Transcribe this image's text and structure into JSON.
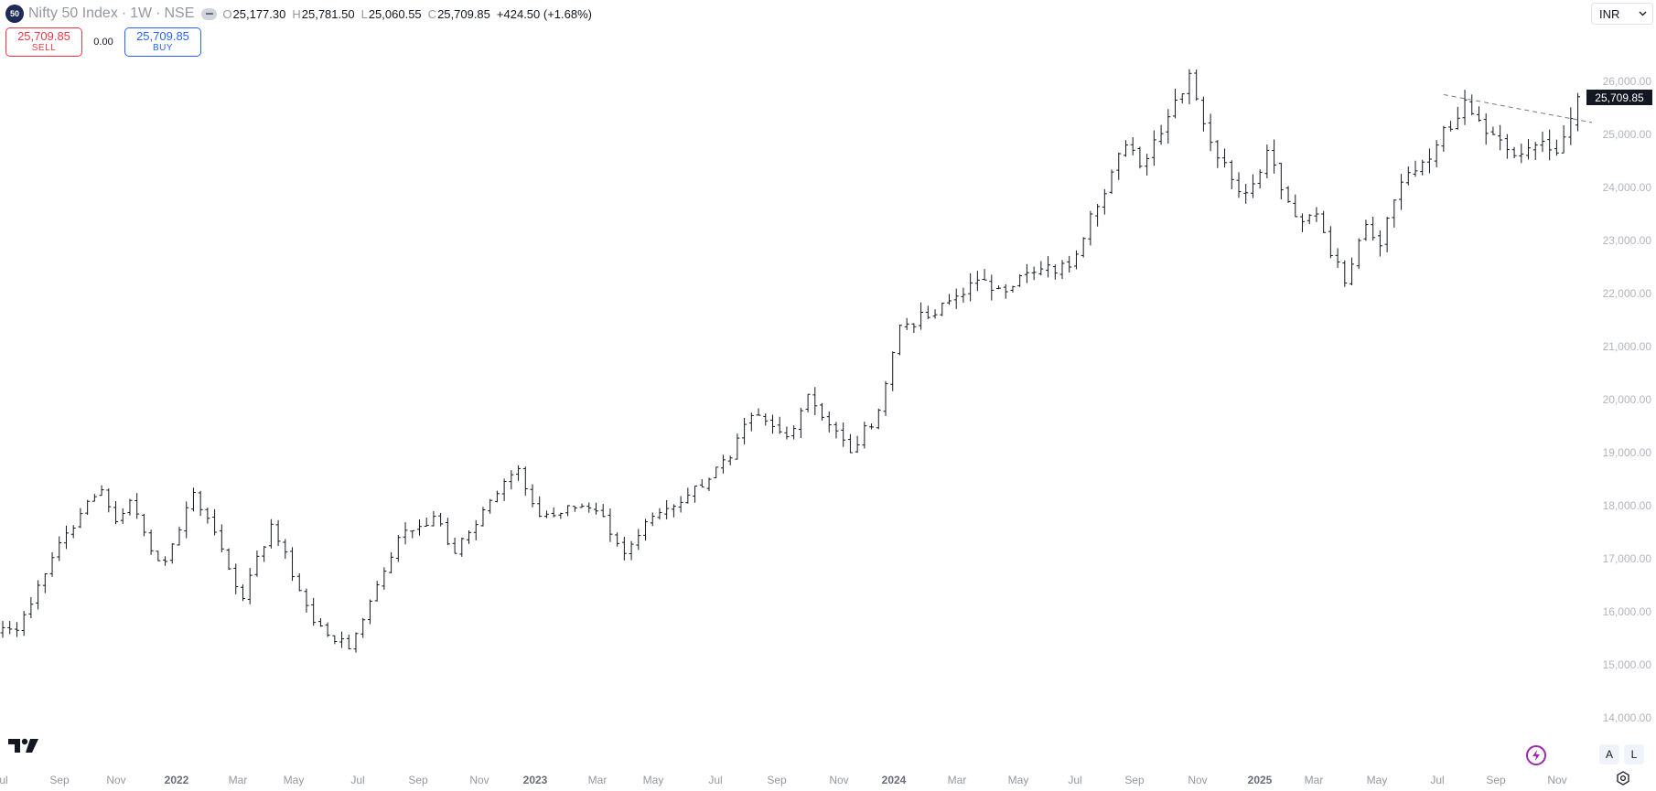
{
  "header": {
    "badge": "50",
    "symbol": "Nifty 50 Index",
    "interval": "1W",
    "exchange": "NSE",
    "sep1": "·",
    "sep2": "·",
    "ohlc": {
      "o_label": "O",
      "o": "25,177.30",
      "h_label": "H",
      "h": "25,781.50",
      "l_label": "L",
      "l": "25,060.55",
      "c_label": "C",
      "c": "25,709.85",
      "change": "+424.50 (+1.68%)"
    }
  },
  "trade": {
    "sell_price": "25,709.85",
    "sell_label": "SELL",
    "spread": "0.00",
    "buy_price": "25,709.85",
    "buy_label": "BUY"
  },
  "currency": {
    "value": "INR"
  },
  "price_scale": {
    "labels": [
      "26,000.00",
      "25,000.00",
      "24,000.00",
      "23,000.00",
      "22,000.00",
      "21,000.00",
      "20,000.00",
      "19,000.00",
      "18,000.00",
      "17,000.00",
      "16,000.00",
      "15,000.00",
      "14,000.00"
    ],
    "last_price": "25,709.85"
  },
  "time_axis": [
    {
      "t": "Jul",
      "year": false
    },
    {
      "t": "Sep",
      "year": false
    },
    {
      "t": "Nov",
      "year": false
    },
    {
      "t": "2022",
      "year": true
    },
    {
      "t": "Mar",
      "year": false
    },
    {
      "t": "May",
      "year": false
    },
    {
      "t": "Jul",
      "year": false
    },
    {
      "t": "Sep",
      "year": false
    },
    {
      "t": "Nov",
      "year": false
    },
    {
      "t": "2023",
      "year": true
    },
    {
      "t": "Mar",
      "year": false
    },
    {
      "t": "May",
      "year": false
    },
    {
      "t": "Jul",
      "year": false
    },
    {
      "t": "Sep",
      "year": false
    },
    {
      "t": "Nov",
      "year": false
    },
    {
      "t": "2024",
      "year": true
    },
    {
      "t": "Mar",
      "year": false
    },
    {
      "t": "May",
      "year": false
    },
    {
      "t": "Jul",
      "year": false
    },
    {
      "t": "Sep",
      "year": false
    },
    {
      "t": "Nov",
      "year": false
    },
    {
      "t": "2025",
      "year": true
    },
    {
      "t": "Mar",
      "year": false
    },
    {
      "t": "May",
      "year": false
    },
    {
      "t": "Jul",
      "year": false
    },
    {
      "t": "Sep",
      "year": false
    },
    {
      "t": "Nov",
      "year": false
    }
  ],
  "bottom_controls": {
    "auto_label": "A",
    "log_label": "L"
  },
  "chart_data": {
    "type": "ohlc",
    "symbol": "Nifty 50 Index",
    "interval": "1W",
    "ylim": [
      13800,
      27200
    ],
    "anchors": [
      {
        "date": "2021-07-09",
        "close": 15700
      },
      {
        "date": "2021-07-23",
        "close": 15650
      },
      {
        "date": "2021-08-13",
        "close": 16500
      },
      {
        "date": "2021-09-03",
        "close": 17300
      },
      {
        "date": "2021-09-24",
        "close": 17850
      },
      {
        "date": "2021-10-15",
        "close": 18300
      },
      {
        "date": "2021-10-29",
        "close": 17700
      },
      {
        "date": "2021-11-12",
        "close": 18100
      },
      {
        "date": "2021-12-03",
        "close": 17150
      },
      {
        "date": "2021-12-17",
        "close": 16950
      },
      {
        "date": "2022-01-14",
        "close": 18250
      },
      {
        "date": "2022-02-04",
        "close": 17500
      },
      {
        "date": "2022-03-04",
        "close": 16250
      },
      {
        "date": "2022-04-01",
        "close": 17650
      },
      {
        "date": "2022-05-13",
        "close": 15800
      },
      {
        "date": "2022-06-17",
        "close": 15300
      },
      {
        "date": "2022-07-08",
        "close": 16200
      },
      {
        "date": "2022-08-05",
        "close": 17400
      },
      {
        "date": "2022-09-09",
        "close": 17800
      },
      {
        "date": "2022-09-30",
        "close": 17100
      },
      {
        "date": "2022-11-04",
        "close": 18100
      },
      {
        "date": "2022-12-02",
        "close": 18700
      },
      {
        "date": "2022-12-23",
        "close": 17800
      },
      {
        "date": "2023-01-20",
        "close": 18000
      },
      {
        "date": "2023-02-17",
        "close": 17900
      },
      {
        "date": "2023-03-17",
        "close": 17100
      },
      {
        "date": "2023-04-14",
        "close": 17800
      },
      {
        "date": "2023-05-19",
        "close": 18200
      },
      {
        "date": "2023-06-30",
        "close": 18900
      },
      {
        "date": "2023-07-21",
        "close": 19700
      },
      {
        "date": "2023-08-25",
        "close": 19300
      },
      {
        "date": "2023-09-15",
        "close": 20100
      },
      {
        "date": "2023-10-27",
        "close": 19000
      },
      {
        "date": "2023-11-24",
        "close": 19800
      },
      {
        "date": "2023-12-15",
        "close": 21400
      },
      {
        "date": "2024-01-19",
        "close": 21600
      },
      {
        "date": "2024-02-23",
        "close": 22200
      },
      {
        "date": "2024-03-22",
        "close": 22100
      },
      {
        "date": "2024-04-26",
        "close": 22400
      },
      {
        "date": "2024-05-31",
        "close": 22500
      },
      {
        "date": "2024-06-21",
        "close": 23500
      },
      {
        "date": "2024-07-26",
        "close": 24800
      },
      {
        "date": "2024-08-09",
        "close": 24400
      },
      {
        "date": "2024-09-27",
        "close": 26150
      },
      {
        "date": "2024-10-18",
        "close": 24850
      },
      {
        "date": "2024-11-08",
        "close": 24150
      },
      {
        "date": "2024-11-22",
        "close": 23900
      },
      {
        "date": "2024-12-13",
        "close": 24700
      },
      {
        "date": "2025-01-10",
        "close": 23450
      },
      {
        "date": "2025-01-31",
        "close": 23500
      },
      {
        "date": "2025-02-28",
        "close": 22200
      },
      {
        "date": "2025-03-21",
        "close": 23300
      },
      {
        "date": "2025-04-04",
        "close": 22900
      },
      {
        "date": "2025-04-25",
        "close": 24100
      },
      {
        "date": "2025-05-30",
        "close": 24800
      },
      {
        "date": "2025-06-27",
        "close": 25650
      },
      {
        "date": "2025-07-25",
        "close": 25000
      },
      {
        "date": "2025-08-15",
        "close": 24600
      },
      {
        "date": "2025-09-05",
        "close": 24800
      },
      {
        "date": "2025-09-26",
        "close": 24650
      },
      {
        "date": "2025-10-10",
        "close": 25300
      },
      {
        "date": "2025-10-17",
        "close": 25709.85
      }
    ],
    "last_bar": {
      "open": 25177.3,
      "high": 25781.5,
      "low": 25060.55,
      "close": 25709.85
    },
    "trendline": [
      {
        "date": "2025-06-06",
        "price": 25750
      },
      {
        "date": "2025-11-07",
        "price": 25200
      }
    ]
  }
}
